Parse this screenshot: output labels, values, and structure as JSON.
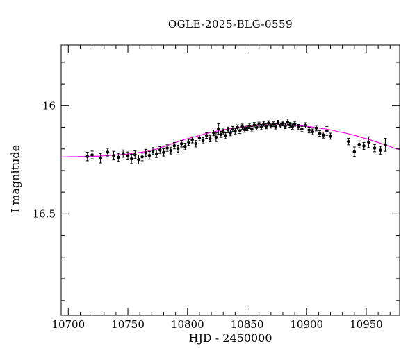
{
  "chart_data": {
    "type": "scatter",
    "title": "OGLE-2025-BLG-0559",
    "xlabel": "HJD - 2450000",
    "ylabel": "I magnitude",
    "legend": "none",
    "grid": false,
    "x_axis": {
      "min": 10694,
      "max": 10978,
      "major_ticks": [
        10700,
        10750,
        10800,
        10850,
        10900,
        10950
      ],
      "major_tick_labels": [
        "10700",
        "10750",
        "10800",
        "10850",
        "10900",
        "10950"
      ],
      "minor_step": 10
    },
    "y_axis": {
      "min": 15.72,
      "max": 16.97,
      "inverted": true,
      "major_ticks": [
        16,
        16.5
      ],
      "major_tick_labels": [
        "16",
        "16.5"
      ],
      "minor_step": 0.1
    },
    "colors": {
      "points": "#000000",
      "model": "#ff00e6",
      "frame": "#000000"
    },
    "model": {
      "x": [
        10694,
        10698,
        10702,
        10706,
        10710,
        10714,
        10718,
        10722,
        10726,
        10730,
        10734,
        10738,
        10742,
        10746,
        10750,
        10754,
        10758,
        10762,
        10766,
        10770,
        10774,
        10778,
        10782,
        10786,
        10790,
        10794,
        10798,
        10802,
        10806,
        10810,
        10814,
        10818,
        10822,
        10826,
        10830,
        10834,
        10838,
        10842,
        10846,
        10850,
        10854,
        10858,
        10862,
        10866,
        10870,
        10874,
        10878,
        10882,
        10886,
        10890,
        10894,
        10898,
        10902,
        10906,
        10910,
        10914,
        10918,
        10922,
        10926,
        10930,
        10934,
        10938,
        10942,
        10946,
        10950,
        10954,
        10958,
        10962,
        10966,
        10970,
        10974,
        10978
      ],
      "y": [
        16.237,
        16.237,
        16.236,
        16.236,
        16.235,
        16.235,
        16.234,
        16.234,
        16.233,
        16.232,
        16.23,
        16.229,
        16.227,
        16.225,
        16.224,
        16.221,
        16.218,
        16.215,
        16.211,
        16.206,
        16.201,
        16.193,
        16.186,
        16.178,
        16.17,
        16.163,
        16.156,
        16.15,
        16.144,
        16.138,
        16.131,
        16.126,
        16.121,
        16.116,
        16.112,
        16.108,
        16.104,
        16.102,
        16.099,
        16.096,
        16.094,
        16.092,
        16.09,
        16.089,
        16.089,
        16.088,
        16.088,
        16.089,
        16.09,
        16.091,
        16.093,
        16.095,
        16.097,
        16.1,
        16.103,
        16.107,
        16.11,
        16.114,
        16.12,
        16.124,
        16.129,
        16.134,
        16.14,
        16.147,
        16.153,
        16.159,
        16.167,
        16.174,
        16.182,
        16.189,
        16.197,
        16.203
      ]
    },
    "points": [
      [
        10716,
        16.235,
        0.02
      ],
      [
        10720,
        16.228,
        0.018
      ],
      [
        10727,
        16.243,
        0.022
      ],
      [
        10733,
        16.215,
        0.018
      ],
      [
        10738,
        16.231,
        0.02
      ],
      [
        10742,
        16.239,
        0.019
      ],
      [
        10746,
        16.222,
        0.017
      ],
      [
        10750,
        16.232,
        0.018
      ],
      [
        10753,
        16.246,
        0.022
      ],
      [
        10756,
        16.227,
        0.018
      ],
      [
        10759,
        16.249,
        0.021
      ],
      [
        10762,
        16.237,
        0.018
      ],
      [
        10765,
        16.218,
        0.016
      ],
      [
        10768,
        16.23,
        0.018
      ],
      [
        10771,
        16.21,
        0.016
      ],
      [
        10774,
        16.223,
        0.017
      ],
      [
        10777,
        16.205,
        0.016
      ],
      [
        10780,
        16.216,
        0.017
      ],
      [
        10783,
        16.196,
        0.015
      ],
      [
        10786,
        16.208,
        0.016
      ],
      [
        10789,
        16.185,
        0.015
      ],
      [
        10792,
        16.199,
        0.016
      ],
      [
        10795,
        16.176,
        0.015
      ],
      [
        10798,
        16.189,
        0.015
      ],
      [
        10801,
        16.17,
        0.014
      ],
      [
        10804,
        16.158,
        0.014
      ],
      [
        10807,
        16.176,
        0.015
      ],
      [
        10810,
        16.149,
        0.014
      ],
      [
        10813,
        16.162,
        0.014
      ],
      [
        10816,
        16.138,
        0.013
      ],
      [
        10819,
        16.153,
        0.014
      ],
      [
        10822,
        16.126,
        0.013
      ],
      [
        10824,
        16.146,
        0.02
      ],
      [
        10826,
        16.108,
        0.024
      ],
      [
        10828,
        16.133,
        0.014
      ],
      [
        10830,
        16.121,
        0.013
      ],
      [
        10832,
        16.139,
        0.014
      ],
      [
        10834,
        16.112,
        0.013
      ],
      [
        10836,
        16.126,
        0.013
      ],
      [
        10838,
        16.108,
        0.012
      ],
      [
        10840,
        16.118,
        0.013
      ],
      [
        10842,
        16.101,
        0.012
      ],
      [
        10844,
        16.116,
        0.013
      ],
      [
        10846,
        16.097,
        0.012
      ],
      [
        10848,
        16.111,
        0.012
      ],
      [
        10850,
        16.104,
        0.012
      ],
      [
        10852,
        16.094,
        0.012
      ],
      [
        10854,
        16.109,
        0.012
      ],
      [
        10856,
        16.09,
        0.012
      ],
      [
        10858,
        16.101,
        0.012
      ],
      [
        10860,
        16.087,
        0.011
      ],
      [
        10862,
        16.099,
        0.012
      ],
      [
        10864,
        16.084,
        0.011
      ],
      [
        10866,
        16.095,
        0.012
      ],
      [
        10868,
        16.081,
        0.011
      ],
      [
        10870,
        16.093,
        0.011
      ],
      [
        10872,
        16.086,
        0.011
      ],
      [
        10874,
        16.096,
        0.012
      ],
      [
        10876,
        16.079,
        0.011
      ],
      [
        10878,
        16.091,
        0.011
      ],
      [
        10880,
        16.083,
        0.011
      ],
      [
        10882,
        16.094,
        0.012
      ],
      [
        10884,
        16.077,
        0.015
      ],
      [
        10886,
        16.089,
        0.011
      ],
      [
        10888,
        16.097,
        0.012
      ],
      [
        10890,
        16.084,
        0.011
      ],
      [
        10893,
        16.099,
        0.012
      ],
      [
        10896,
        16.108,
        0.012
      ],
      [
        10899,
        16.091,
        0.012
      ],
      [
        10902,
        16.113,
        0.013
      ],
      [
        10905,
        16.121,
        0.013
      ],
      [
        10908,
        16.104,
        0.013
      ],
      [
        10911,
        16.129,
        0.013
      ],
      [
        10914,
        16.136,
        0.014
      ],
      [
        10917,
        16.117,
        0.02
      ],
      [
        10920,
        16.141,
        0.014
      ],
      [
        10935,
        16.166,
        0.015
      ],
      [
        10940,
        16.213,
        0.022
      ],
      [
        10944,
        16.179,
        0.016
      ],
      [
        10948,
        16.186,
        0.016
      ],
      [
        10952,
        16.169,
        0.025
      ],
      [
        10957,
        16.196,
        0.017
      ],
      [
        10962,
        16.206,
        0.018
      ],
      [
        10966,
        16.181,
        0.03
      ]
    ]
  }
}
